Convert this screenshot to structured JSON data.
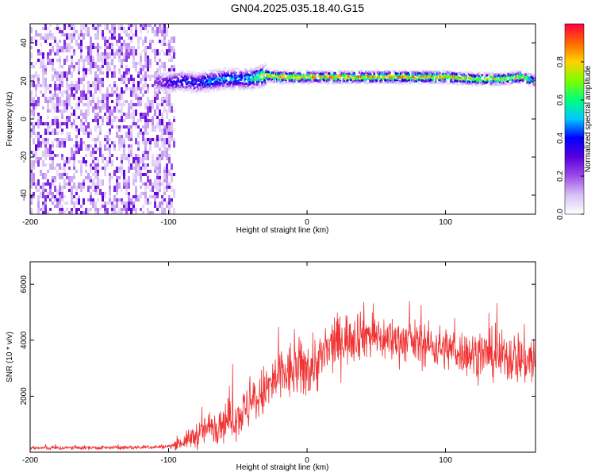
{
  "title": "GN04.2025.035.18.40.G15",
  "chart_data": [
    {
      "type": "heatmap",
      "xlabel": "Height of straight line (km)",
      "ylabel": "Frequency (Hz)",
      "xlim": [
        -200,
        165
      ],
      "ylim": [
        -50,
        50
      ],
      "x_ticks": [
        -200,
        -100,
        0,
        100
      ],
      "y_ticks": [
        -40,
        -20,
        0,
        20,
        40
      ],
      "ridge": {
        "x": [
          -110,
          -100,
          -90,
          -80,
          -70,
          -60,
          -50,
          -40,
          -30,
          -20,
          -10,
          0,
          20,
          40,
          60,
          80,
          100,
          120,
          140,
          155,
          165
        ],
        "y": [
          20,
          19,
          20,
          19,
          20,
          21,
          21,
          21,
          23,
          22,
          22,
          22,
          22,
          22,
          22,
          22,
          22,
          21,
          21,
          22,
          20
        ],
        "peak_amplitude": [
          0.25,
          0.35,
          0.45,
          0.45,
          0.5,
          0.55,
          0.5,
          0.6,
          0.95,
          0.9,
          0.9,
          0.9,
          0.9,
          0.9,
          0.9,
          0.9,
          0.9,
          0.85,
          0.8,
          0.85,
          0.5
        ]
      },
      "noise_region_x": [
        -200,
        -100
      ],
      "colorbar": {
        "label": "Normalized spectral amplitude",
        "range": [
          0,
          1
        ],
        "ticks": [
          0.0,
          0.2,
          0.4,
          0.6,
          0.8
        ],
        "colors": [
          "#ffffff",
          "#d8c2f5",
          "#9b4de6",
          "#5a00dd",
          "#0000ff",
          "#00c8ff",
          "#00ff7f",
          "#7cff00",
          "#ffd200",
          "#ff6600",
          "#ff0040"
        ]
      }
    },
    {
      "type": "line",
      "xlabel": "Height of straight line (km)",
      "ylabel": "SNR (10 * v/v)",
      "xlim": [
        -200,
        165
      ],
      "ylim": [
        0,
        6800
      ],
      "x_ticks": [
        -200,
        -100,
        0,
        100
      ],
      "y_ticks": [
        2000,
        4000,
        6000
      ],
      "color": "#f03232",
      "series": [
        {
          "x": [
            -200,
            -180,
            -160,
            -140,
            -120,
            -100,
            -90,
            -80,
            -70,
            -60,
            -50,
            -40,
            -30,
            -20,
            -10,
            0,
            10,
            20,
            30,
            40,
            50,
            60,
            70,
            80,
            90,
            100,
            110,
            120,
            130,
            140,
            150,
            160,
            165
          ],
          "y": [
            150,
            150,
            160,
            160,
            170,
            200,
            350,
            600,
            900,
            1100,
            1300,
            1700,
            2200,
            2700,
            2900,
            3000,
            3300,
            3900,
            4100,
            4300,
            4100,
            4000,
            4000,
            3900,
            3800,
            3700,
            3600,
            3500,
            3500,
            3400,
            3400,
            3300,
            3300
          ],
          "noise_amplitude": [
            60,
            60,
            60,
            60,
            60,
            70,
            200,
            400,
            500,
            600,
            650,
            700,
            800,
            900,
            900,
            900,
            900,
            800,
            800,
            800,
            700,
            700,
            650,
            650,
            650,
            650,
            650,
            700,
            700,
            750,
            800,
            850,
            900
          ]
        }
      ]
    }
  ]
}
